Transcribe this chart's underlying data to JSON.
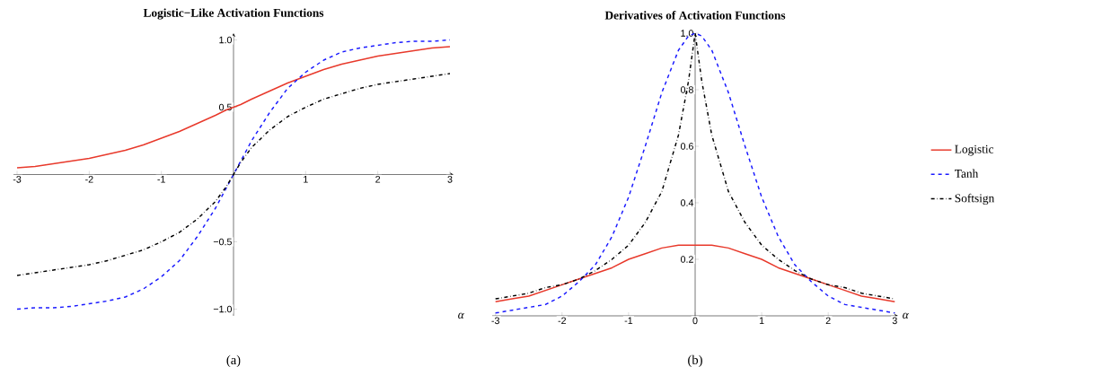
{
  "chart_data": [
    {
      "type": "line",
      "title": "Logistic−Like Activation Functions",
      "xlabel": "α",
      "annotations": [
        "(a)"
      ],
      "x": [
        -3,
        -2.75,
        -2.5,
        -2.25,
        -2,
        -1.75,
        -1.5,
        -1.25,
        -1,
        -0.75,
        -0.5,
        -0.25,
        -0.1,
        0,
        0.1,
        0.25,
        0.5,
        0.75,
        1,
        1.25,
        1.5,
        1.75,
        2,
        2.25,
        2.5,
        2.75,
        3
      ],
      "series": [
        {
          "color": "#e8392b",
          "line_style": "solid",
          "values": [
            0.05,
            0.06,
            0.08,
            0.1,
            0.12,
            0.15,
            0.18,
            0.22,
            0.27,
            0.32,
            0.38,
            0.44,
            0.48,
            0.5,
            0.52,
            0.56,
            0.62,
            0.68,
            0.73,
            0.78,
            0.82,
            0.85,
            0.88,
            0.9,
            0.92,
            0.94,
            0.95
          ]
        },
        {
          "color": "#1a1aff",
          "line_style": "dashed",
          "values": [
            -1.0,
            -0.99,
            -0.99,
            -0.98,
            -0.96,
            -0.94,
            -0.91,
            -0.85,
            -0.76,
            -0.64,
            -0.46,
            -0.25,
            -0.1,
            0,
            0.1,
            0.25,
            0.46,
            0.64,
            0.76,
            0.85,
            0.91,
            0.94,
            0.96,
            0.98,
            0.99,
            0.99,
            1.0
          ]
        },
        {
          "color": "#000000",
          "line_style": "dashdot",
          "values": [
            -0.75,
            -0.73,
            -0.71,
            -0.69,
            -0.67,
            -0.64,
            -0.6,
            -0.56,
            -0.5,
            -0.43,
            -0.33,
            -0.2,
            -0.09,
            0,
            0.09,
            0.2,
            0.33,
            0.43,
            0.5,
            0.56,
            0.6,
            0.64,
            0.67,
            0.69,
            0.71,
            0.73,
            0.75
          ]
        }
      ],
      "xlim": [
        -3.05,
        3.05
      ],
      "ylim": [
        -1.05,
        1.05
      ],
      "xticks": [
        -3,
        -2,
        -1,
        1,
        2,
        3
      ],
      "yticks": [
        {
          "value": -1,
          "label": "−1.0"
        },
        {
          "value": -0.5,
          "label": "−0.5"
        },
        {
          "value": 0.5,
          "label": "0.5"
        },
        {
          "value": 1,
          "label": "1.0"
        }
      ],
      "marker": "none",
      "grid": false,
      "legend": false
    },
    {
      "type": "line",
      "title": "Derivatives of Activation Functions",
      "xlabel": "α",
      "annotations": [
        "(b)"
      ],
      "x": [
        -3,
        -2.75,
        -2.5,
        -2.25,
        -2,
        -1.75,
        -1.5,
        -1.25,
        -1,
        -0.75,
        -0.5,
        -0.25,
        -0.1,
        0,
        0.1,
        0.25,
        0.5,
        0.75,
        1,
        1.25,
        1.5,
        1.75,
        2,
        2.25,
        2.5,
        2.75,
        3
      ],
      "series": [
        {
          "name": "Logistic",
          "color": "#e8392b",
          "line_style": "solid",
          "values": [
            0.05,
            0.06,
            0.07,
            0.09,
            0.11,
            0.13,
            0.15,
            0.17,
            0.2,
            0.22,
            0.24,
            0.25,
            0.25,
            0.25,
            0.25,
            0.25,
            0.24,
            0.22,
            0.2,
            0.17,
            0.15,
            0.13,
            0.11,
            0.09,
            0.07,
            0.06,
            0.05
          ]
        },
        {
          "name": "Tanh",
          "color": "#1a1aff",
          "line_style": "dashed",
          "values": [
            0.01,
            0.02,
            0.03,
            0.04,
            0.07,
            0.12,
            0.18,
            0.28,
            0.42,
            0.6,
            0.79,
            0.94,
            0.99,
            1.0,
            0.99,
            0.94,
            0.79,
            0.6,
            0.42,
            0.28,
            0.18,
            0.12,
            0.07,
            0.04,
            0.03,
            0.02,
            0.01
          ]
        },
        {
          "name": "Softsign",
          "color": "#000000",
          "line_style": "dashdot",
          "values": [
            0.06,
            0.07,
            0.08,
            0.1,
            0.11,
            0.13,
            0.16,
            0.2,
            0.25,
            0.33,
            0.44,
            0.64,
            0.83,
            1.0,
            0.83,
            0.64,
            0.44,
            0.33,
            0.25,
            0.2,
            0.16,
            0.13,
            0.11,
            0.1,
            0.08,
            0.07,
            0.06
          ]
        }
      ],
      "xlim": [
        -3.05,
        3.05
      ],
      "ylim": [
        0,
        1.0
      ],
      "xticks": [
        -3,
        -2,
        -1,
        0,
        1,
        2,
        3
      ],
      "yticks": [
        {
          "value": 0.2,
          "label": "0.2"
        },
        {
          "value": 0.4,
          "label": "0.4"
        },
        {
          "value": 0.6,
          "label": "0.6"
        },
        {
          "value": 0.8,
          "label": "0.8"
        },
        {
          "value": 1,
          "label": "1.0"
        }
      ],
      "marker": "none",
      "grid": false,
      "legend": "right"
    }
  ]
}
